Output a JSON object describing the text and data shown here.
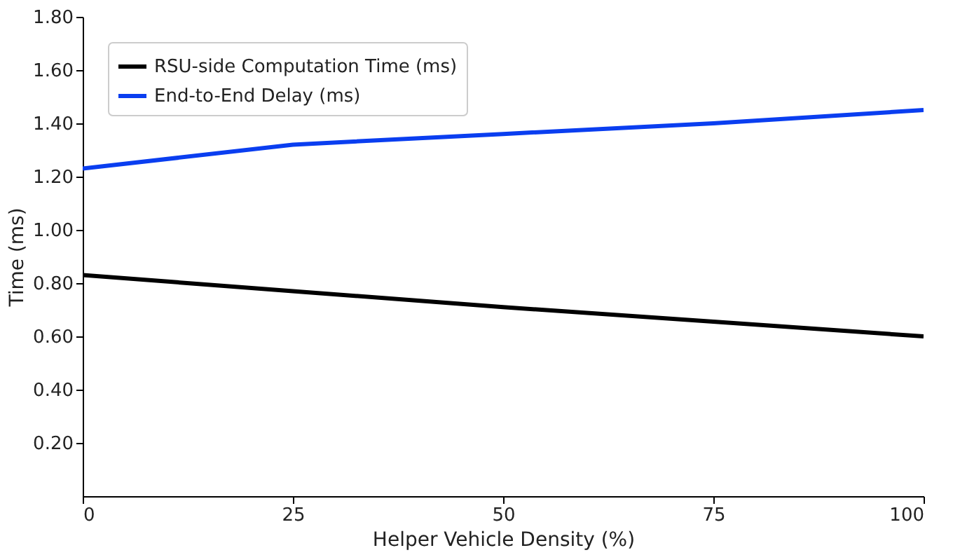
{
  "chart_data": {
    "type": "line",
    "xlabel": "Helper Vehicle Density (%)",
    "ylabel": "Time (ms)",
    "x": [
      0,
      25,
      50,
      75,
      100
    ],
    "series": [
      {
        "name": "RSU-side Computation Time (ms)",
        "color": "#000000",
        "values": [
          0.83,
          0.77,
          0.71,
          0.655,
          0.6
        ]
      },
      {
        "name": "End-to-End Delay (ms)",
        "color": "#0a3ef0",
        "values": [
          1.23,
          1.32,
          1.36,
          1.4,
          1.45
        ]
      }
    ],
    "xlim": [
      0,
      100
    ],
    "xticks": [
      0,
      25,
      50,
      75,
      100
    ],
    "ylim": [
      0,
      1.8
    ],
    "yticks": [
      {
        "value": 0.2,
        "label": "0.20"
      },
      {
        "value": 0.4,
        "label": "0.40"
      },
      {
        "value": 0.6,
        "label": "0.60"
      },
      {
        "value": 0.8,
        "label": "0.80"
      },
      {
        "value": 1.0,
        "label": "1.00"
      },
      {
        "value": 1.2,
        "label": "1.20"
      },
      {
        "value": 1.4,
        "label": "1.40"
      },
      {
        "value": 1.6,
        "label": "1.60"
      },
      {
        "value": 1.8,
        "label": "1.80"
      }
    ],
    "grid": false,
    "legend": "top left",
    "marker": "none",
    "line_style": "solid"
  }
}
